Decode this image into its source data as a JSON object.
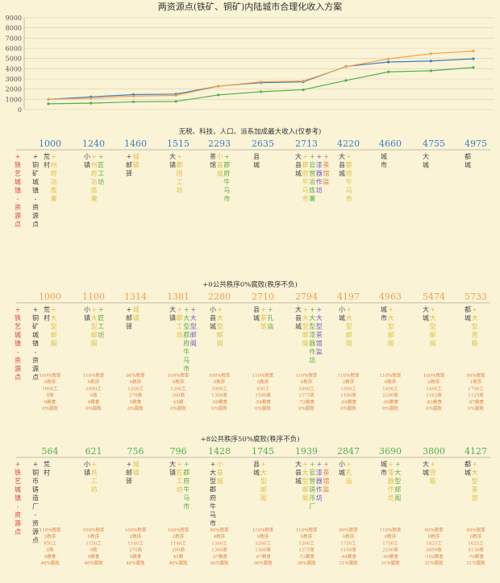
{
  "title": "两资源点(铁矿、铜矿)内陆城市合理化收入方案",
  "colors": {
    "background": "#fbf3d6",
    "grid": "#d9cfae",
    "series_blue": "#3a7fc1",
    "series_orange": "#f0a050",
    "series_green": "#4fb04f",
    "label_red": "#e04040",
    "label_dark": "#444444",
    "label_yellow": "#e0c040",
    "label_green": "#60b040",
    "label_purple": "#7060c0",
    "note_orange": "#e08040"
  },
  "chart_data": [
    {
      "type": "line",
      "title": "两资源点(铁矿、铜矿)内陆城市合理化收入方案",
      "xlabel": "",
      "ylabel": "",
      "ylim": [
        0,
        9000
      ],
      "yticks": [
        "0",
        "1000",
        "2000",
        "3000",
        "4000",
        "5000",
        "6000",
        "7000",
        "8000",
        "9000"
      ],
      "grid": true,
      "x": [
        1,
        2,
        3,
        4,
        5,
        6,
        7,
        8,
        9,
        10,
        11
      ],
      "series": [
        {
          "color": "#3a7fc1",
          "values": [
            1000,
            1240,
            1460,
            1515,
            2293,
            2635,
            2713,
            4220,
            4660,
            4755,
            4975
          ]
        },
        {
          "color": "#f0a050",
          "values": [
            1000,
            1100,
            1314,
            1381,
            2280,
            2710,
            2794,
            4197,
            4963,
            5474,
            5733
          ]
        },
        {
          "color": "#4fb04f",
          "values": [
            564,
            621,
            756,
            796,
            1428,
            1745,
            1939,
            2847,
            3690,
            3800,
            4127
          ]
        }
      ]
    }
  ],
  "sections": [
    {
      "heading": "无税、科技、人口、派系加成最大收入(仅参考)",
      "color": "#3a7fc1",
      "values": [
        "1000",
        "1240",
        "1460",
        "1515",
        "2293",
        "2635",
        "2713",
        "4220",
        "4660",
        "4755",
        "4975"
      ],
      "legend_left": [
        "+铁艺城镇-资源点",
        "+铜矿城镇-资源点"
      ],
      "buildings": [
        [
          "荒村",
          "+州府冶炼署"
        ],
        [
          "小镇",
          "+州府冶炼署",
          "+匠工坊"
        ],
        [
          "+邮驿",
          "城镇"
        ],
        [
          "大镇",
          "+郡国工坊"
        ],
        [
          "茶馆",
          "小县城",
          "+郡府牛马市"
        ],
        [
          "县城"
        ],
        [
          "大县城",
          "+郡府牛马市",
          "+官营冶炼署",
          "+漆器作坊",
          "+茶馆监"
        ],
        [
          "大县城",
          "+郡府牛马市"
        ],
        [
          "城市"
        ],
        [
          "大城"
        ],
        [
          "都城"
        ]
      ],
      "notes": []
    },
    {
      "heading": "+0公共秩序0%腐败(秩序不负)",
      "color": "#f0a050",
      "values": [
        "1000",
        "1100",
        "1314",
        "1381",
        "2280",
        "2710",
        "2794",
        "4197",
        "4963",
        "5474",
        "5733"
      ],
      "legend_left": [
        "+铁艺城镇-资源点",
        "+铜矿城镇-资源点"
      ],
      "buildings": [
        [
          "荒村",
          "+大型邮阁"
        ],
        [
          "小镇",
          "+大型邮阁",
          "+匠工坊"
        ],
        [
          "+邮驿",
          "城镇"
        ],
        [
          "大镇",
          "+郡工坊",
          "+大型郡府牛马市",
          "+大型邮阁"
        ],
        [
          "小县城",
          "+大型邮阁"
        ],
        [
          "县城",
          "+茶馆",
          "+孔庙"
        ],
        [
          "大县城",
          "+大型邮阁",
          "+大型漆器作坊",
          "+大型茶馆监"
        ],
        [
          "小城",
          "+大型邮阁"
        ],
        [
          "城市",
          "+大型邮阁"
        ],
        [
          "大城",
          "+大型邮阁"
        ],
        [
          "都城",
          "+大型宫殿"
        ]
      ],
      "notes": [
        [
          "100%税率",
          "0秩序",
          "1000工",
          "0商",
          "0粮食",
          "0%腐败"
        ],
        [
          "110%税率",
          "0秩序",
          "1000工",
          "0商",
          "0粮食",
          "0%腐败"
        ],
        [
          "90%税率",
          "0秩序",
          "1200工",
          "270商",
          "0粮食",
          "0%腐败"
        ],
        [
          "100%税率",
          "0秩序",
          "1200工",
          "300商",
          "45粮",
          "0%腐败"
        ],
        [
          "100%税率",
          "0秩序",
          "1000工",
          "1300商",
          "-56粮食",
          "0%腐败"
        ],
        [
          "110%税率",
          "0秩序",
          "450工",
          "1500商",
          "-54粮食",
          "0%腐败"
        ],
        [
          "110%税率",
          "0秩序",
          "1000工",
          "1575商",
          "-72粮食",
          "0%腐败"
        ],
        [
          "110%税率",
          "2秩序",
          "1500工",
          "1100商",
          "-64粮食",
          "0%腐败"
        ],
        [
          "110%税率",
          "0秩序",
          "1400工",
          "2200商",
          "-90粮食",
          "0%腐败"
        ],
        [
          "100%税率",
          "0秩序",
          "1400工",
          "1162商",
          "-82粮食",
          "0%腐败"
        ],
        [
          "90%税率",
          "1秩序",
          "1700工",
          "1125商",
          "-47粮食",
          "0%腐败"
        ]
      ]
    },
    {
      "heading": "+8公共秩序50%腐败(秩序不负)",
      "color": "#4fb04f",
      "values": [
        "564",
        "621",
        "756",
        "796",
        "1428",
        "1745",
        "1939",
        "2847",
        "3690",
        "3800",
        "4127"
      ],
      "legend_left": [
        "+铁艺城镇-资源点",
        "+铜币铸造厂-资源点"
      ],
      "buildings": [
        [
          "荒村"
        ],
        [
          "小镇",
          "+共工坊"
        ],
        [
          "+邮驿",
          "城镇"
        ],
        [
          "大镇",
          "+匠工坊",
          "+郡府牛马市"
        ],
        [
          "+大型郡府牛马市",
          "小县城"
        ],
        [
          "县城",
          "+大型邮阁"
        ],
        [
          "大县城",
          "+大型邮阁",
          "+官营铸币厂",
          "+漆器作坊",
          "+茶馆监"
        ],
        [
          "小城",
          "+孔庙"
        ],
        [
          "城市",
          "+漆器作坊",
          "+大型邮阁"
        ],
        [
          "大城",
          "+宫殿"
        ],
        [
          "都城",
          "+大型茶馆"
        ]
      ],
      "notes": [
        [
          "110%税率",
          "2秩序",
          "950工",
          "0商",
          "0粮食",
          "46%腐败"
        ],
        [
          "100%税率",
          "0秩序",
          "1150工",
          "0商",
          "0粮食",
          "46%腐败"
        ],
        [
          "100%税率",
          "2秩序",
          "1140工",
          "270商",
          "0粮食",
          "46%腐败"
        ],
        [
          "100%税率",
          "2秩序",
          "1140工",
          "300商",
          "45粮",
          "46%腐败"
        ],
        [
          "90%税率",
          "4秩序",
          "1300工",
          "1300商",
          "-37粮食",
          "36%腐败"
        ],
        [
          "110%税率",
          "0秩序",
          "1200工",
          "1300商",
          "-67粮食",
          "36%腐败"
        ],
        [
          "110%税率",
          "0秩序",
          "1200工",
          "1575商",
          "-72粮食",
          "36%腐败"
        ],
        [
          "90%税率",
          "0秩序",
          "1750工",
          "1100商",
          "-44粮食",
          "31%腐败"
        ],
        [
          "110%税率",
          "0秩序",
          "1750工",
          "2100商",
          "-90粮食",
          "31%腐败"
        ],
        [
          "90%税率",
          "0秩序",
          "1625工",
          "3499商",
          "-102粮食",
          "31%腐败"
        ],
        [
          "90%税率",
          "0秩序",
          "1625工",
          "4130商",
          "-70粮食",
          "31%腐败"
        ]
      ]
    }
  ]
}
